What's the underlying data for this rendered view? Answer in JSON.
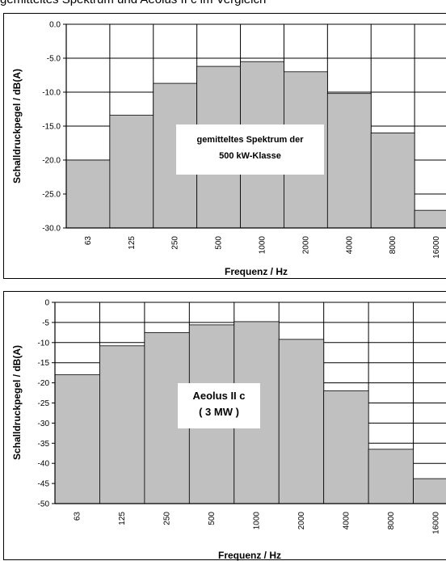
{
  "caption": "gemitteltes Spektrum und Aeolus II c im Vergleich",
  "chart_data": [
    {
      "type": "bar",
      "categories": [
        "63",
        "125",
        "250",
        "500",
        "1000",
        "2000",
        "4000",
        "8000",
        "16000"
      ],
      "values": [
        -20.0,
        -13.4,
        -8.7,
        -6.2,
        -5.5,
        -7.0,
        -10.2,
        -16.0,
        -27.4
      ],
      "ylim": [
        -30.0,
        0.0
      ],
      "yticks": [
        "0.0",
        "-5.0",
        "-10.0",
        "-15.0",
        "-20.0",
        "-25.0",
        "-30.0"
      ],
      "xlabel": "Frequenz / Hz",
      "ylabel": "Schalldruckpegel / dB(A)",
      "annotation": [
        "gemitteltes Spektrum der",
        "500 kW-Klasse"
      ],
      "grid": true,
      "bar_color": "#c0c0c0"
    },
    {
      "type": "bar",
      "categories": [
        "63",
        "125",
        "250",
        "500",
        "1000",
        "2000",
        "4000",
        "8000",
        "16000"
      ],
      "values": [
        -18.0,
        -10.8,
        -7.5,
        -5.6,
        -4.8,
        -9.2,
        -22.0,
        -36.5,
        -43.8
      ],
      "ylim": [
        -50,
        0
      ],
      "yticks": [
        "0",
        "-5",
        "-10",
        "-15",
        "-20",
        "-25",
        "-30",
        "-35",
        "-40",
        "-45",
        "-50"
      ],
      "xlabel": "Frequenz / Hz",
      "ylabel": "Schalldruckpegel / dB(A)",
      "annotation": [
        "Aeolus II c",
        "( 3 MW )"
      ],
      "grid": true,
      "bar_color": "#c0c0c0"
    }
  ]
}
